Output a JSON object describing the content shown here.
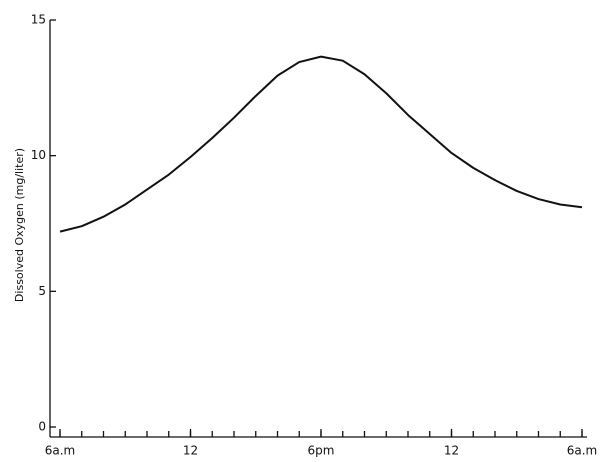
{
  "chart_data": {
    "type": "line",
    "ylabel": "Dissolved Oxygen  (mg/liter)",
    "x": [
      0,
      1,
      2,
      3,
      4,
      5,
      6,
      7,
      8,
      9,
      10,
      11,
      12,
      13,
      14,
      15,
      16,
      17,
      18,
      19,
      20,
      21,
      22,
      23,
      24
    ],
    "series": [
      {
        "color": "#111111",
        "values": [
          7.2,
          7.4,
          7.75,
          8.2,
          8.75,
          9.3,
          9.95,
          10.65,
          11.4,
          12.2,
          12.95,
          13.45,
          13.65,
          13.5,
          13.0,
          12.3,
          11.5,
          10.8,
          10.1,
          9.55,
          9.1,
          8.7,
          8.4,
          8.2,
          8.1
        ]
      }
    ],
    "xlim": [
      0,
      24
    ],
    "xticks": [
      {
        "value": 0,
        "label": "6a.m"
      },
      {
        "value": 6,
        "label": "12"
      },
      {
        "value": 12,
        "label": "6pm"
      },
      {
        "value": 18,
        "label": "12"
      },
      {
        "value": 24,
        "label": "6a.m"
      }
    ],
    "ylim": [
      0,
      15
    ],
    "yticks": [
      0,
      5,
      10,
      15
    ]
  }
}
